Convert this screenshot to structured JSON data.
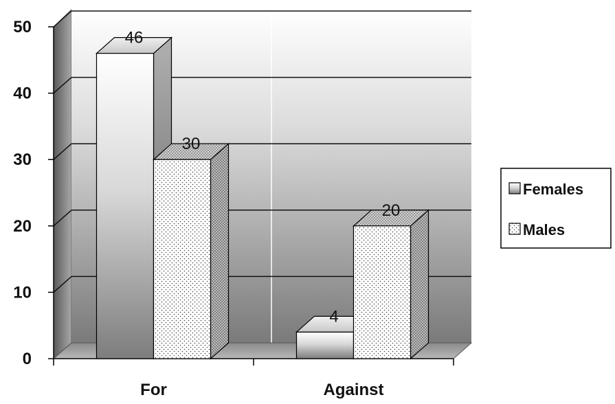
{
  "chart_data": {
    "type": "bar",
    "categories": [
      "For",
      "Against"
    ],
    "series": [
      {
        "name": "Females",
        "values": [
          46,
          4
        ]
      },
      {
        "name": "Males",
        "values": [
          30,
          20
        ]
      }
    ],
    "ylim": [
      0,
      50
    ],
    "yticks": [
      0,
      10,
      20,
      30,
      40,
      50
    ],
    "legend_position": "right",
    "grid": true,
    "style": "3d-column",
    "series_fill": {
      "Females": "gradient-gray",
      "Males": "dotted-white"
    }
  }
}
